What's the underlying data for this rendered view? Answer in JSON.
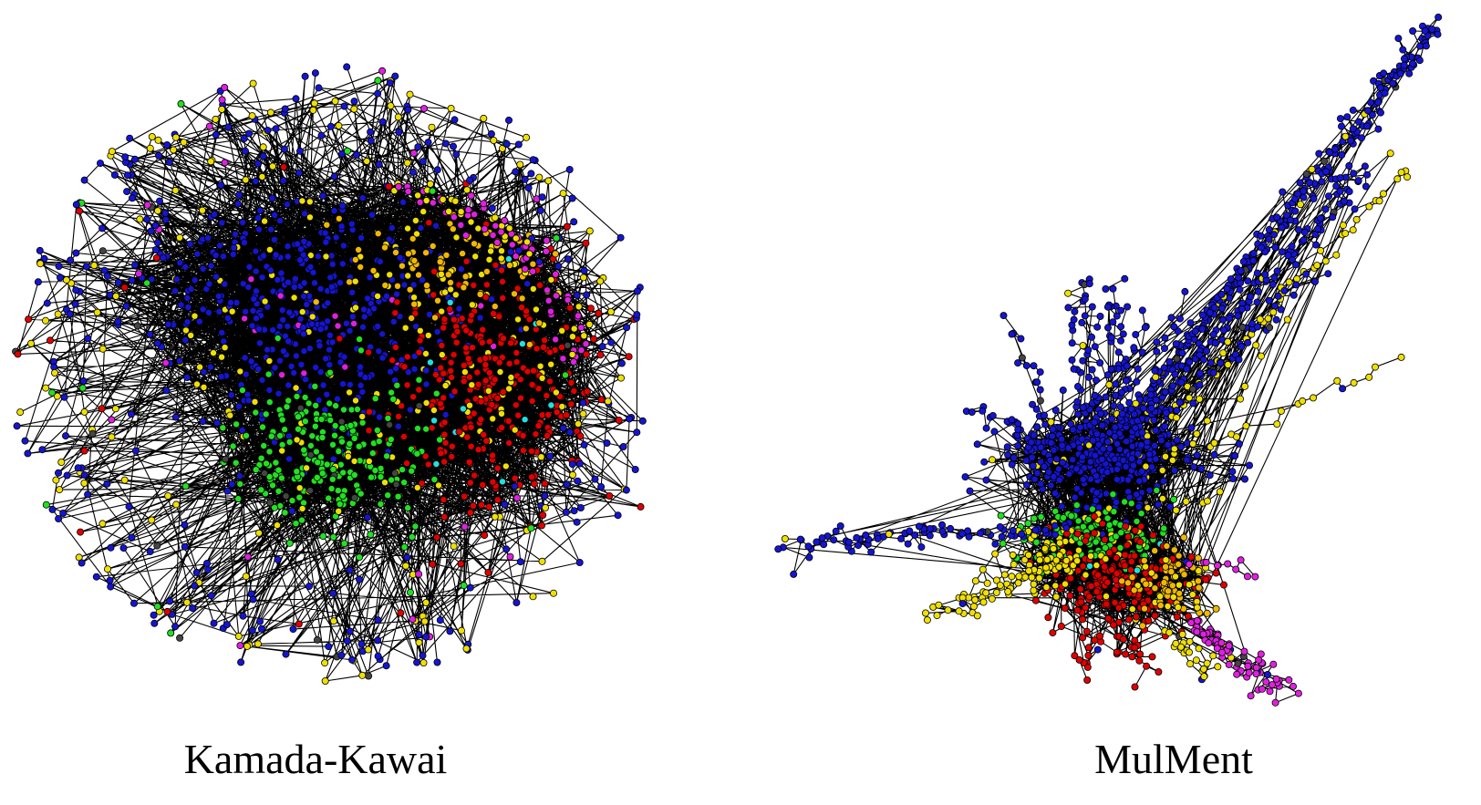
{
  "captions": {
    "left": "Kamada-Kawai",
    "right": "MulMent"
  }
}
